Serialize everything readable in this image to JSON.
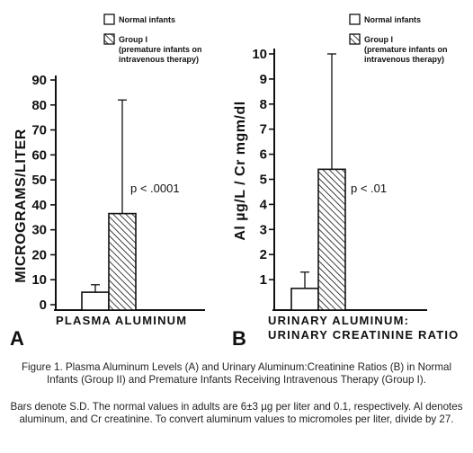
{
  "chart_data": [
    {
      "panel": "A",
      "type": "bar",
      "categories": [
        "Normal infants",
        "Group I"
      ],
      "values": [
        5,
        36.5
      ],
      "error_bars": [
        3,
        45.5
      ],
      "ylabel": "MICROGRAMS/LITER",
      "xlabel": "PLASMA ALUMINUM",
      "ylim": [
        0,
        90
      ],
      "yticks": [
        "0",
        "10",
        "20",
        "30",
        "40",
        "50",
        "60",
        "70",
        "80",
        "90"
      ],
      "annotation": "p < .0001",
      "legend": [
        "Normal infants",
        "Group I",
        "(premature infants on",
        "intravenous therapy)"
      ]
    },
    {
      "panel": "B",
      "type": "bar",
      "categories": [
        "Normal infants",
        "Group I"
      ],
      "values": [
        0.65,
        5.4
      ],
      "error_bars": [
        0.65,
        4.6
      ],
      "ylabel": "Al  µg/L / Cr  mgm/dl",
      "xlabel": "URINARY ALUMINUM:",
      "xlabel2": "URINARY CREATININE RATIO",
      "ylim": [
        0,
        10
      ],
      "yticks": [
        "1",
        "2",
        "3",
        "4",
        "5",
        "6",
        "7",
        "8",
        "9",
        "10"
      ],
      "annotation": "p < .01",
      "legend": [
        "Normal infants",
        "Group I",
        "(premature infants on",
        "intravenous therapy)"
      ]
    }
  ],
  "caption": {
    "line1": "Figure 1. Plasma Aluminum Levels (A) and Urinary Aluminum:Creatinine Ratios (B) in Normal Infants (Group II) and Premature Infants Receiving Intravenous Therapy (Group I).",
    "line2": "Bars denote S.D. The normal values in adults are 6±3 µg per liter and 0.1, respectively. Al denotes aluminum, and Cr creatinine. To convert aluminum values to micromoles per liter, divide by 27."
  },
  "colors": {
    "ink": "#111111",
    "paper": "#ffffff"
  }
}
